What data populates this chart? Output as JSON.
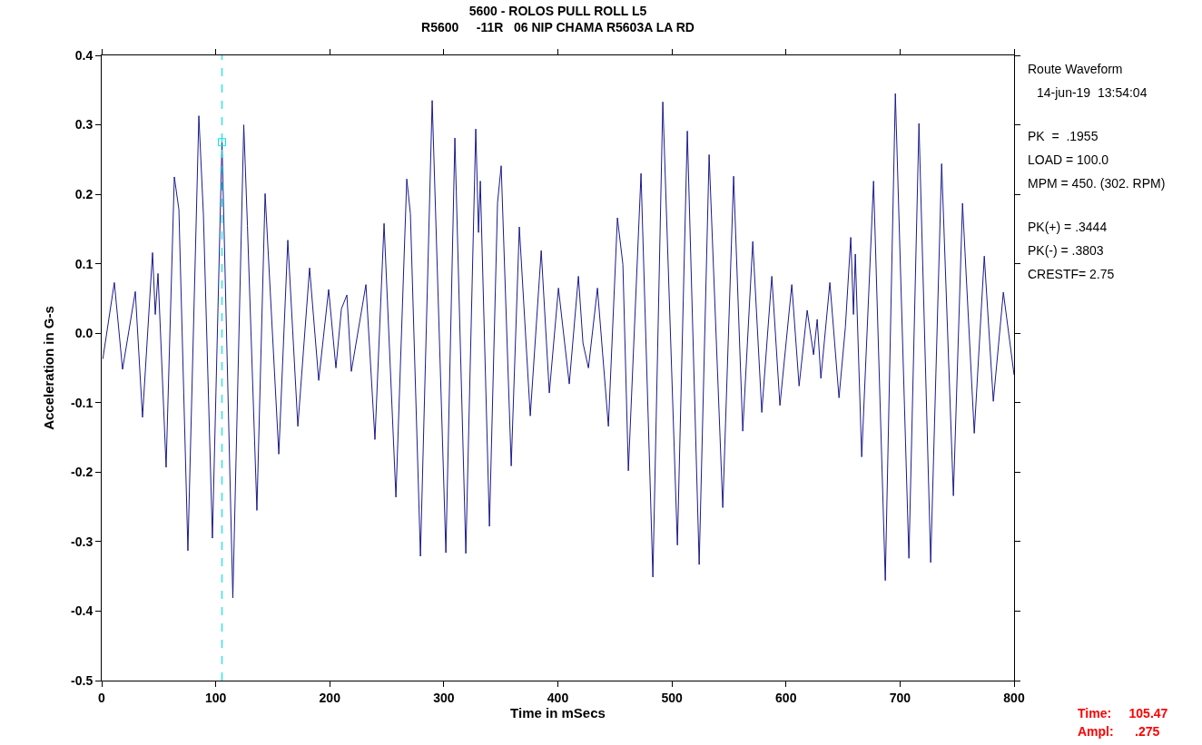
{
  "chart_data": {
    "type": "line",
    "title": "5600 - ROLOS PULL ROLL L5",
    "subtitle": "R5600     -11R   06 NIP CHAMA R5603A LA RD",
    "xlabel": "Time in mSecs",
    "ylabel": "Acceleration in G-s",
    "series": [
      {
        "color": "#1a1a8c",
        "x": [
          1,
          11.1,
          18.3,
          29.5,
          35.8,
          44.6,
          47.0,
          49.4,
          56.5,
          63.7,
          67.7,
          75.6,
          85.2,
          89.2,
          97.1,
          105.5,
          115.0,
          124.6,
          127.8,
          136.1,
          143.3,
          155.3,
          163.2,
          172.0,
          182.3,
          190.3,
          199.0,
          205.4,
          210.2,
          215.0,
          218.9,
          231.7,
          239.6,
          247.6,
          258.0,
          267.5,
          270.7,
          279.5,
          289.8,
          301.8,
          309.7,
          319.3,
          328.0,
          330.4,
          332.0,
          340.0,
          347.1,
          350.3,
          359.1,
          366.2,
          375.8,
          385.4,
          392.5,
          400.5,
          410.0,
          418.0,
          422.0,
          426.8,
          434.7,
          444.3,
          452.2,
          457.0,
          461.8,
          472.9,
          483.3,
          492.0,
          504.8,
          513.5,
          523.9,
          532.6,
          544.6,
          554.1,
          562.1,
          570.9,
          578.8,
          587.6,
          594.7,
          605.1,
          611.5,
          618.6,
          624.2,
          627.4,
          630.6,
          638.5,
          646.5,
          652.1,
          656.8,
          659.2,
          660.8,
          666.4,
          676.8,
          687.1,
          695.9,
          707.8,
          716.6,
          726.9,
          736.5,
          746.8,
          754.8,
          765.1,
          773.9,
          781.8,
          790.6,
          800
        ],
        "values": [
          -0.037,
          0.073,
          -0.052,
          0.06,
          -0.121,
          0.116,
          0.027,
          0.086,
          -0.193,
          0.225,
          0.178,
          -0.313,
          0.313,
          0.171,
          -0.295,
          0.275,
          -0.381,
          0.3,
          0.155,
          -0.255,
          0.201,
          -0.174,
          0.134,
          -0.134,
          0.094,
          -0.068,
          0.063,
          -0.05,
          0.035,
          0.055,
          -0.055,
          0.07,
          -0.153,
          0.158,
          -0.236,
          0.222,
          0.172,
          -0.321,
          0.335,
          -0.316,
          0.281,
          -0.317,
          0.294,
          0.145,
          0.219,
          -0.278,
          0.188,
          0.241,
          -0.191,
          0.153,
          -0.119,
          0.119,
          -0.086,
          0.065,
          -0.073,
          0.082,
          -0.014,
          -0.05,
          0.065,
          -0.134,
          0.166,
          0.099,
          -0.198,
          0.23,
          -0.351,
          0.333,
          -0.305,
          0.291,
          -0.333,
          0.257,
          -0.251,
          0.226,
          -0.141,
          0.132,
          -0.114,
          0.082,
          -0.104,
          0.07,
          -0.076,
          0.033,
          -0.031,
          0.02,
          -0.065,
          0.073,
          -0.093,
          0.009,
          0.138,
          0.027,
          0.114,
          -0.178,
          0.219,
          -0.356,
          0.345,
          -0.324,
          0.302,
          -0.33,
          0.244,
          -0.234,
          0.187,
          -0.144,
          0.111,
          -0.098,
          0.059,
          -0.06
        ]
      },
      {
        "type": "scatter",
        "marker": "square",
        "color": "#00e5ee",
        "x": [
          105.47
        ],
        "values": [
          0.275
        ]
      }
    ],
    "ref_lines": [
      {
        "axis": "x",
        "value": 105.47,
        "color": "#00e5ee",
        "line_style": "dashed"
      }
    ],
    "xlim": [
      0,
      800
    ],
    "xticks": [
      0,
      100,
      200,
      300,
      400,
      500,
      600,
      700,
      800
    ],
    "ylim": [
      -0.5,
      0.4
    ],
    "yticks": [
      {
        "value": -0.5,
        "label": "-0.5"
      },
      {
        "value": -0.4,
        "label": "-0.4"
      },
      {
        "value": -0.3,
        "label": "-0.3"
      },
      {
        "value": -0.2,
        "label": "-0.2"
      },
      {
        "value": -0.1,
        "label": "-0.1"
      },
      {
        "value": 0,
        "label": "0.0"
      },
      0.1,
      0.2,
      0.3,
      0.4
    ],
    "marker": "none",
    "line_style": "solid",
    "annotations": [
      "Route Waveform",
      "14-jun-19  13:54:04",
      "PK  =  .1955",
      "LOAD = 100.0",
      "MPM = 450. (302. RPM)",
      "PK(+) = .3444",
      "PK(-) = .3803",
      "CRESTF= 2.75",
      "Time:     105.47",
      "Ampl:      .275"
    ]
  }
}
